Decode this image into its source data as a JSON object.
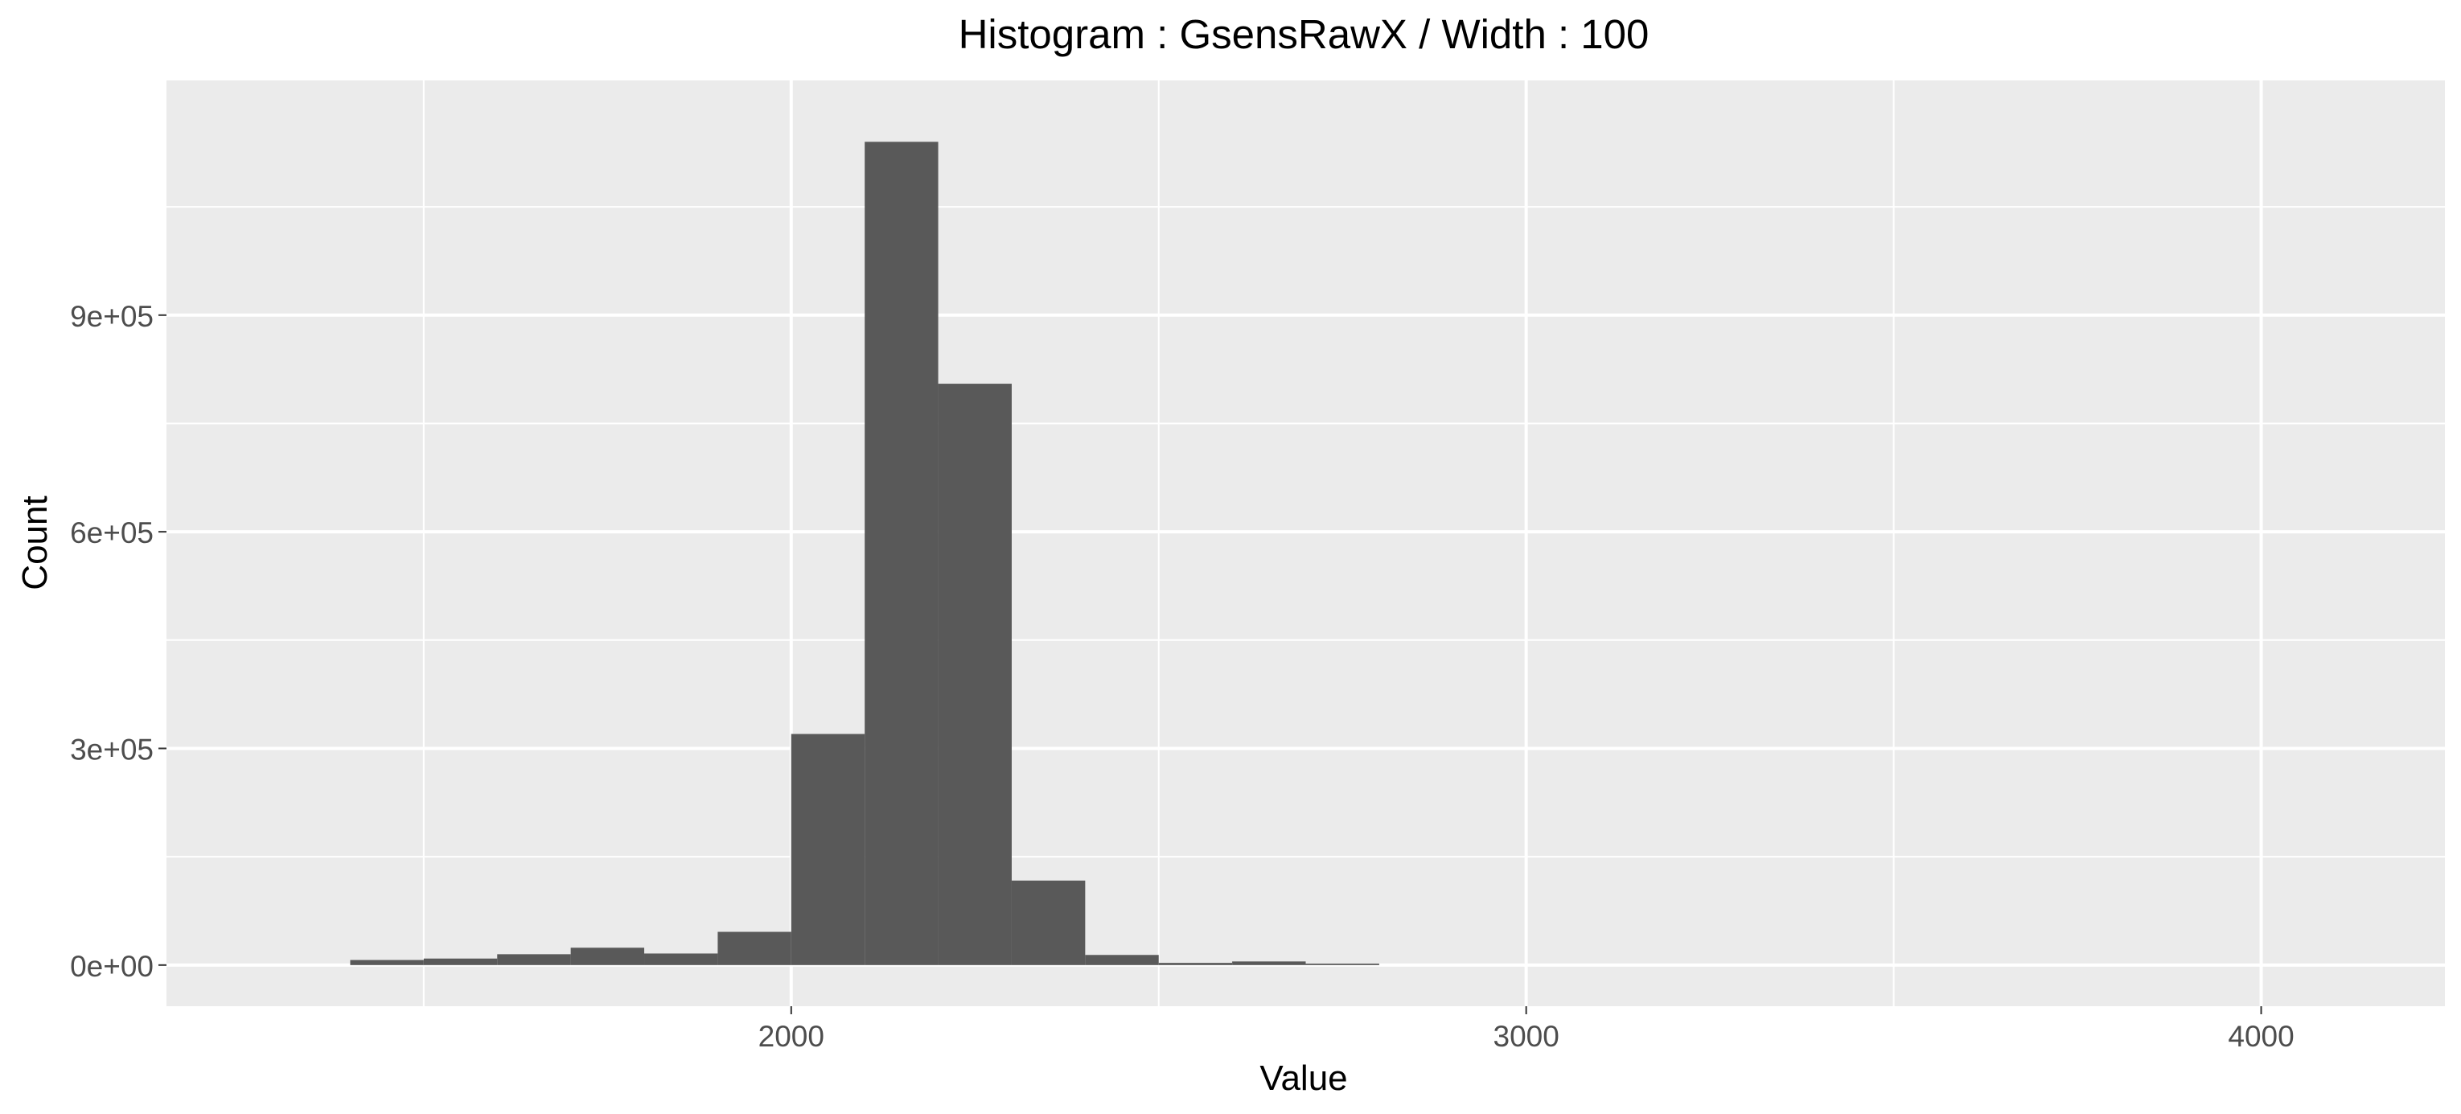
{
  "chart_data": {
    "type": "bar",
    "title": "Histogram : GsensRawX / Width : 100",
    "xlabel": "Value",
    "ylabel": "Count",
    "xlim": [
      1150,
      4250
    ],
    "ylim": [
      -57000,
      1225000
    ],
    "x_ticks": [
      2000,
      3000,
      4000
    ],
    "x_minor_ticks": [
      1500,
      2500,
      3500
    ],
    "y_ticks": [
      0,
      300000,
      600000,
      900000
    ],
    "y_tick_labels": [
      "0e+00",
      "3e+05",
      "6e+05",
      "9e+05"
    ],
    "y_minor_ticks": [
      150000,
      450000,
      750000,
      1050000
    ],
    "bin_width": 100,
    "bins": [
      {
        "start": 1400,
        "count": 7000
      },
      {
        "start": 1500,
        "count": 9000
      },
      {
        "start": 1600,
        "count": 15000
      },
      {
        "start": 1700,
        "count": 24000
      },
      {
        "start": 1800,
        "count": 16000
      },
      {
        "start": 1900,
        "count": 46000
      },
      {
        "start": 2000,
        "count": 320000
      },
      {
        "start": 2100,
        "count": 1140000
      },
      {
        "start": 2200,
        "count": 805000
      },
      {
        "start": 2300,
        "count": 117000
      },
      {
        "start": 2400,
        "count": 14000
      },
      {
        "start": 2500,
        "count": 3000
      },
      {
        "start": 2600,
        "count": 5000
      },
      {
        "start": 2700,
        "count": 2000
      }
    ],
    "bar_color": "#595959",
    "panel_background": "#EBEBEB",
    "grid_color": "#FFFFFF",
    "grid": true
  }
}
